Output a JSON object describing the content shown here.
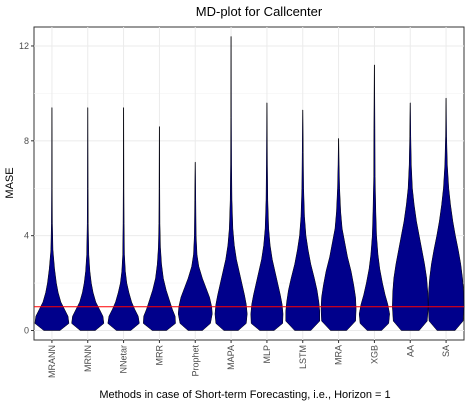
{
  "chart_data": {
    "type": "violin",
    "title": "MD-plot for Callcenter",
    "xlabel": "Methods in case of Short-term Forecasting, i.e., Horizon = 1",
    "ylabel": "MASE",
    "ylim": [
      -0.4,
      12.8
    ],
    "yticks": [
      0,
      4,
      8,
      12
    ],
    "grid": true,
    "fill_color": "#00008B",
    "reference_line": {
      "y": 1,
      "color": "#FF0000"
    },
    "categories": [
      "MRANN",
      "MRNN",
      "NNetar",
      "MRR",
      "Prophet",
      "MAPA",
      "MLP",
      "LSTM",
      "MRA",
      "XGB",
      "AA",
      "SA"
    ],
    "series": [
      {
        "category": "MRANN",
        "min": 0,
        "max": 9.4,
        "density": [
          [
            0,
            0.45
          ],
          [
            0.3,
            0.95
          ],
          [
            0.6,
            0.9
          ],
          [
            0.9,
            0.7
          ],
          [
            1.2,
            0.5
          ],
          [
            1.6,
            0.35
          ],
          [
            2,
            0.25
          ],
          [
            2.6,
            0.15
          ],
          [
            3.4,
            0.06
          ],
          [
            4.5,
            0.03
          ],
          [
            6,
            0.02
          ],
          [
            9.4,
            0.01
          ]
        ]
      },
      {
        "category": "MRNN",
        "min": 0,
        "max": 9.4,
        "density": [
          [
            0,
            0.42
          ],
          [
            0.3,
            0.9
          ],
          [
            0.6,
            0.85
          ],
          [
            0.9,
            0.65
          ],
          [
            1.2,
            0.45
          ],
          [
            1.6,
            0.3
          ],
          [
            2,
            0.2
          ],
          [
            2.5,
            0.12
          ],
          [
            3.2,
            0.06
          ],
          [
            4.5,
            0.03
          ],
          [
            6,
            0.02
          ],
          [
            9.4,
            0.01
          ]
        ]
      },
      {
        "category": "NNetar",
        "min": 0,
        "max": 9.4,
        "density": [
          [
            0,
            0.4
          ],
          [
            0.3,
            0.88
          ],
          [
            0.6,
            0.82
          ],
          [
            0.9,
            0.62
          ],
          [
            1.2,
            0.45
          ],
          [
            1.6,
            0.3
          ],
          [
            2,
            0.18
          ],
          [
            2.5,
            0.1
          ],
          [
            3.2,
            0.05
          ],
          [
            4.5,
            0.03
          ],
          [
            6,
            0.02
          ],
          [
            9.4,
            0.01
          ]
        ]
      },
      {
        "category": "MRR",
        "min": 0,
        "max": 8.6,
        "density": [
          [
            0,
            0.4
          ],
          [
            0.3,
            0.9
          ],
          [
            0.6,
            0.88
          ],
          [
            0.9,
            0.72
          ],
          [
            1.3,
            0.55
          ],
          [
            1.7,
            0.38
          ],
          [
            2.2,
            0.22
          ],
          [
            2.8,
            0.12
          ],
          [
            3.5,
            0.06
          ],
          [
            4.5,
            0.03
          ],
          [
            6,
            0.02
          ],
          [
            8.6,
            0.01
          ]
        ]
      },
      {
        "category": "Prophet",
        "min": 0,
        "max": 7.1,
        "density": [
          [
            0,
            0.4
          ],
          [
            0.3,
            0.85
          ],
          [
            0.7,
            0.95
          ],
          [
            1,
            0.92
          ],
          [
            1.4,
            0.8
          ],
          [
            1.8,
            0.6
          ],
          [
            2.2,
            0.4
          ],
          [
            2.7,
            0.2
          ],
          [
            3.2,
            0.1
          ],
          [
            4,
            0.05
          ],
          [
            5.5,
            0.03
          ],
          [
            7.1,
            0.01
          ]
        ]
      },
      {
        "category": "MAPA",
        "min": 0,
        "max": 12.4,
        "density": [
          [
            0,
            0.4
          ],
          [
            0.3,
            0.85
          ],
          [
            0.7,
            0.9
          ],
          [
            1.1,
            0.85
          ],
          [
            1.5,
            0.75
          ],
          [
            2,
            0.6
          ],
          [
            2.5,
            0.45
          ],
          [
            3,
            0.3
          ],
          [
            3.6,
            0.18
          ],
          [
            4.3,
            0.1
          ],
          [
            5.5,
            0.05
          ],
          [
            7,
            0.03
          ],
          [
            9,
            0.02
          ],
          [
            12.4,
            0.01
          ]
        ]
      },
      {
        "category": "MLP",
        "min": 0,
        "max": 9.6,
        "density": [
          [
            0,
            0.4
          ],
          [
            0.3,
            0.88
          ],
          [
            0.7,
            0.9
          ],
          [
            1.1,
            0.85
          ],
          [
            1.5,
            0.75
          ],
          [
            2,
            0.6
          ],
          [
            2.5,
            0.45
          ],
          [
            3,
            0.3
          ],
          [
            3.6,
            0.18
          ],
          [
            4.3,
            0.1
          ],
          [
            5.5,
            0.05
          ],
          [
            7,
            0.03
          ],
          [
            9.6,
            0.01
          ]
        ]
      },
      {
        "category": "LSTM",
        "min": 0,
        "max": 9.3,
        "density": [
          [
            0,
            0.45
          ],
          [
            0.4,
            0.95
          ],
          [
            0.8,
            0.95
          ],
          [
            1.2,
            0.9
          ],
          [
            1.7,
            0.8
          ],
          [
            2.2,
            0.65
          ],
          [
            2.8,
            0.45
          ],
          [
            3.4,
            0.3
          ],
          [
            4,
            0.18
          ],
          [
            4.8,
            0.1
          ],
          [
            6,
            0.05
          ],
          [
            7.5,
            0.03
          ],
          [
            9.3,
            0.01
          ]
        ]
      },
      {
        "category": "MRA",
        "min": 0,
        "max": 8.1,
        "density": [
          [
            0,
            0.45
          ],
          [
            0.4,
            0.95
          ],
          [
            0.9,
            0.98
          ],
          [
            1.4,
            0.95
          ],
          [
            1.9,
            0.85
          ],
          [
            2.5,
            0.7
          ],
          [
            3.1,
            0.5
          ],
          [
            3.7,
            0.35
          ],
          [
            4.3,
            0.2
          ],
          [
            5,
            0.12
          ],
          [
            6,
            0.06
          ],
          [
            7,
            0.03
          ],
          [
            8.1,
            0.01
          ]
        ]
      },
      {
        "category": "XGB",
        "min": 0,
        "max": 11.2,
        "density": [
          [
            0,
            0.4
          ],
          [
            0.3,
            0.8
          ],
          [
            0.7,
            0.85
          ],
          [
            1.1,
            0.75
          ],
          [
            1.5,
            0.6
          ],
          [
            2,
            0.45
          ],
          [
            2.6,
            0.3
          ],
          [
            3.2,
            0.2
          ],
          [
            4,
            0.12
          ],
          [
            5,
            0.08
          ],
          [
            6.5,
            0.04
          ],
          [
            8.5,
            0.03
          ],
          [
            11.2,
            0.01
          ]
        ]
      },
      {
        "category": "AA",
        "min": 0,
        "max": 9.6,
        "density": [
          [
            0,
            0.5
          ],
          [
            0.4,
            0.95
          ],
          [
            1,
            1
          ],
          [
            1.6,
            0.98
          ],
          [
            2.2,
            0.92
          ],
          [
            2.8,
            0.8
          ],
          [
            3.4,
            0.65
          ],
          [
            4,
            0.5
          ],
          [
            4.6,
            0.35
          ],
          [
            5.3,
            0.22
          ],
          [
            6,
            0.12
          ],
          [
            7,
            0.06
          ],
          [
            8.2,
            0.03
          ],
          [
            9.6,
            0.01
          ]
        ]
      },
      {
        "category": "SA",
        "min": 0,
        "max": 9.8,
        "density": [
          [
            0,
            0.5
          ],
          [
            0.4,
            0.95
          ],
          [
            1,
            1
          ],
          [
            1.6,
            0.98
          ],
          [
            2.2,
            0.92
          ],
          [
            2.8,
            0.82
          ],
          [
            3.4,
            0.68
          ],
          [
            4,
            0.52
          ],
          [
            4.6,
            0.38
          ],
          [
            5.3,
            0.25
          ],
          [
            6,
            0.15
          ],
          [
            7,
            0.07
          ],
          [
            8.2,
            0.03
          ],
          [
            9.8,
            0.01
          ]
        ]
      }
    ]
  }
}
